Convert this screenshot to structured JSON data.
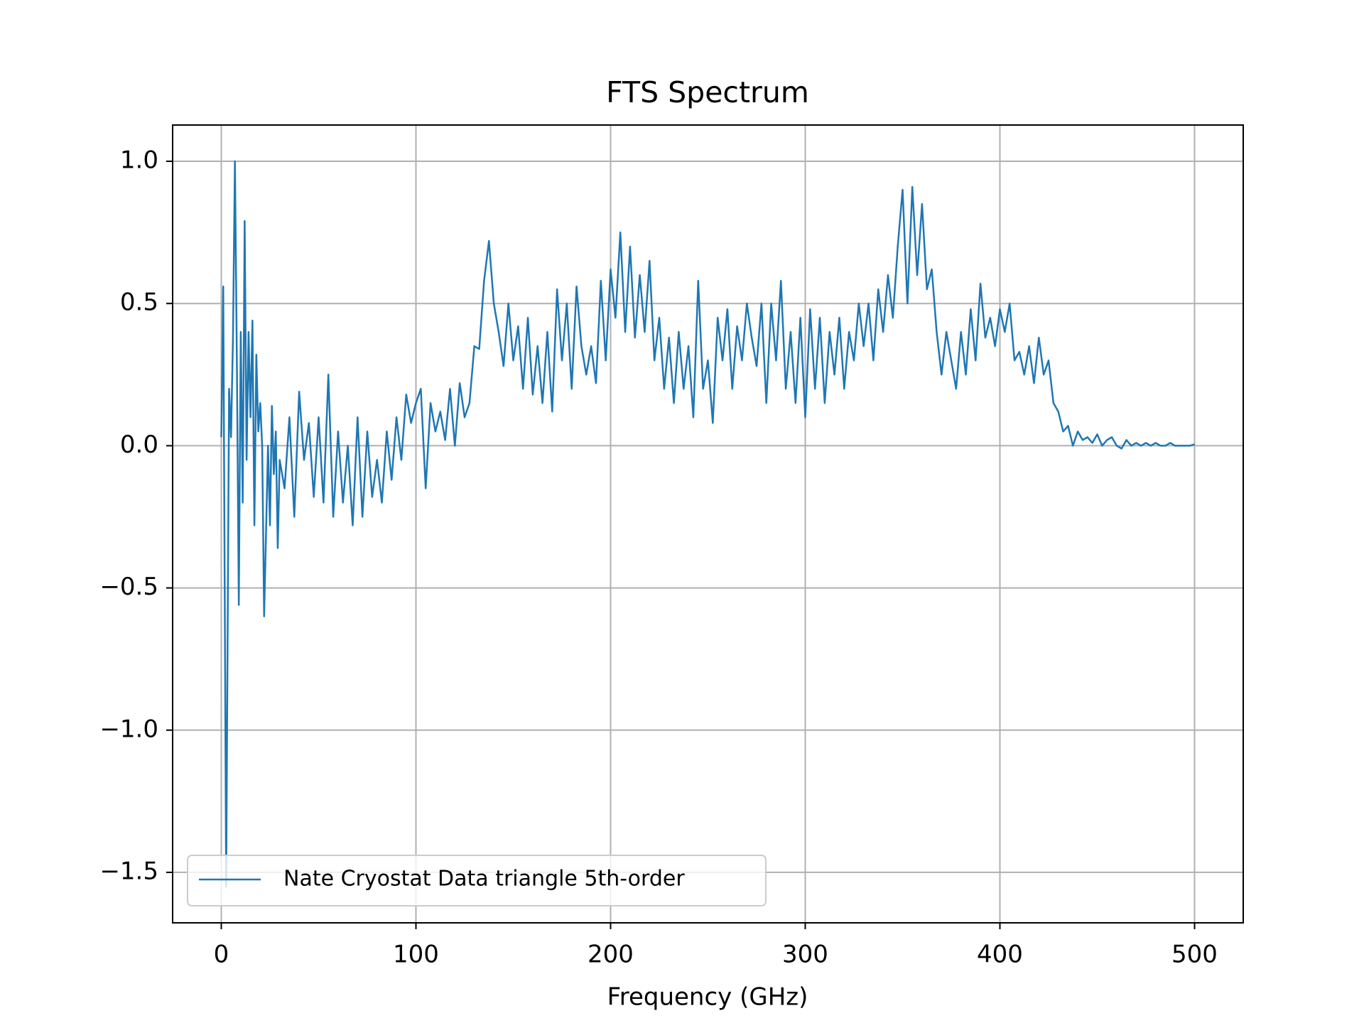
{
  "chart_data": {
    "type": "line",
    "title": "FTS Spectrum",
    "x_label": "Frequency (GHz)",
    "x": [
      0,
      1,
      2.5,
      4,
      5,
      6,
      7,
      8,
      9,
      10,
      11,
      12,
      13,
      14,
      15,
      16,
      17,
      18,
      19,
      20,
      21,
      22,
      23,
      24,
      25,
      26,
      27,
      28,
      29,
      30,
      32.5,
      35,
      37.5,
      40,
      42.5,
      45,
      47.5,
      50,
      52.5,
      55,
      57.5,
      60,
      62.5,
      65,
      67.5,
      70,
      72.5,
      75,
      77.5,
      80,
      82.5,
      85,
      87.5,
      90,
      92.5,
      95,
      97.5,
      100,
      102.5,
      105,
      107.5,
      110,
      112.5,
      115,
      117.5,
      120,
      122.5,
      125,
      127.5,
      130,
      132.5,
      135,
      137.5,
      140,
      142.5,
      145,
      147.5,
      150,
      152.5,
      155,
      157.5,
      160,
      162.5,
      165,
      167.5,
      170,
      172.5,
      175,
      177.5,
      180,
      182.5,
      185,
      187.5,
      190,
      192.5,
      195,
      197.5,
      200,
      202.5,
      205,
      207.5,
      210,
      212.5,
      215,
      217.5,
      220,
      222.5,
      225,
      227.5,
      230,
      232.5,
      235,
      237.5,
      240,
      242.5,
      245,
      247.5,
      250,
      252.5,
      255,
      257.5,
      260,
      262.5,
      265,
      267.5,
      270,
      272.5,
      275,
      277.5,
      280,
      282.5,
      285,
      287.5,
      290,
      292.5,
      295,
      297.5,
      300,
      302.5,
      305,
      307.5,
      310,
      312.5,
      315,
      317.5,
      320,
      322.5,
      325,
      327.5,
      330,
      332.5,
      335,
      337.5,
      340,
      342.5,
      345,
      347.5,
      350,
      352.5,
      355,
      357.5,
      360,
      362.5,
      365,
      367.5,
      370,
      372.5,
      375,
      377.5,
      380,
      382.5,
      385,
      387.5,
      390,
      392.5,
      395,
      397.5,
      400,
      402.5,
      405,
      407.5,
      410,
      412.5,
      415,
      417.5,
      420,
      422.5,
      425,
      427.5,
      430,
      432.5,
      435,
      437.5,
      440,
      442.5,
      445,
      447.5,
      450,
      452.5,
      455,
      457.5,
      460,
      462.5,
      465,
      467.5,
      470,
      472.5,
      475,
      477.5,
      480,
      482.5,
      485,
      487.5,
      490,
      492.5,
      495,
      497.5,
      500
    ],
    "series": [
      {
        "name": "Nate Cryostat Data triangle 5th-order",
        "color": "#1f77b4",
        "values": [
          0.03,
          0.56,
          -1.55,
          0.2,
          0.03,
          0.38,
          1.0,
          0.3,
          -0.56,
          0.4,
          -0.2,
          0.79,
          -0.05,
          0.4,
          0.1,
          0.44,
          -0.28,
          0.32,
          0.05,
          0.15,
          0.0,
          -0.6,
          -0.3,
          0.0,
          -0.28,
          0.14,
          -0.1,
          0.05,
          -0.36,
          -0.05,
          -0.15,
          0.1,
          -0.25,
          0.19,
          -0.05,
          0.08,
          -0.18,
          0.1,
          -0.2,
          0.25,
          -0.25,
          0.05,
          -0.2,
          0.0,
          -0.28,
          0.1,
          -0.25,
          0.05,
          -0.18,
          -0.05,
          -0.2,
          0.05,
          -0.12,
          0.1,
          -0.05,
          0.18,
          0.08,
          0.15,
          0.2,
          -0.15,
          0.15,
          0.05,
          0.12,
          0.02,
          0.2,
          0.0,
          0.22,
          0.1,
          0.15,
          0.35,
          0.34,
          0.58,
          0.72,
          0.5,
          0.4,
          0.28,
          0.5,
          0.3,
          0.42,
          0.2,
          0.45,
          0.18,
          0.35,
          0.15,
          0.4,
          0.12,
          0.55,
          0.3,
          0.5,
          0.2,
          0.56,
          0.35,
          0.25,
          0.35,
          0.22,
          0.58,
          0.3,
          0.62,
          0.45,
          0.75,
          0.4,
          0.7,
          0.38,
          0.6,
          0.4,
          0.65,
          0.3,
          0.45,
          0.2,
          0.38,
          0.15,
          0.4,
          0.2,
          0.35,
          0.1,
          0.58,
          0.2,
          0.3,
          0.08,
          0.45,
          0.3,
          0.48,
          0.2,
          0.42,
          0.3,
          0.5,
          0.38,
          0.28,
          0.5,
          0.15,
          0.5,
          0.3,
          0.58,
          0.2,
          0.4,
          0.15,
          0.45,
          0.1,
          0.48,
          0.2,
          0.45,
          0.15,
          0.4,
          0.25,
          0.45,
          0.2,
          0.4,
          0.3,
          0.5,
          0.35,
          0.5,
          0.3,
          0.55,
          0.4,
          0.6,
          0.45,
          0.7,
          0.9,
          0.5,
          0.91,
          0.6,
          0.85,
          0.55,
          0.62,
          0.4,
          0.25,
          0.4,
          0.3,
          0.2,
          0.4,
          0.25,
          0.48,
          0.3,
          0.57,
          0.38,
          0.45,
          0.35,
          0.48,
          0.4,
          0.5,
          0.3,
          0.33,
          0.25,
          0.35,
          0.22,
          0.38,
          0.25,
          0.3,
          0.15,
          0.12,
          0.05,
          0.07,
          0.0,
          0.05,
          0.02,
          0.03,
          0.01,
          0.04,
          0.0,
          0.02,
          0.03,
          0.0,
          -0.01,
          0.02,
          0.0,
          0.01,
          0.0,
          0.01,
          0.0,
          0.01,
          0.0,
          0.0,
          0.01,
          0.0,
          0.0,
          0.0,
          0.0,
          0.005
        ]
      }
    ],
    "xlim": [
      -25,
      525
    ],
    "xticks": [
      0,
      100,
      200,
      300,
      400,
      500
    ],
    "ylim": [
      -1.6775,
      1.1275
    ],
    "yticks": [
      {
        "value": -1.5,
        "label": "−1.5"
      },
      {
        "value": -1.0,
        "label": "−1.0"
      },
      {
        "value": -0.5,
        "label": "−0.5"
      },
      {
        "value": 0,
        "label": "0.0"
      },
      {
        "value": 0.5,
        "label": "0.5"
      },
      {
        "value": 1.0,
        "label": "1.0"
      }
    ],
    "grid": true,
    "legend_position": "lower left"
  }
}
